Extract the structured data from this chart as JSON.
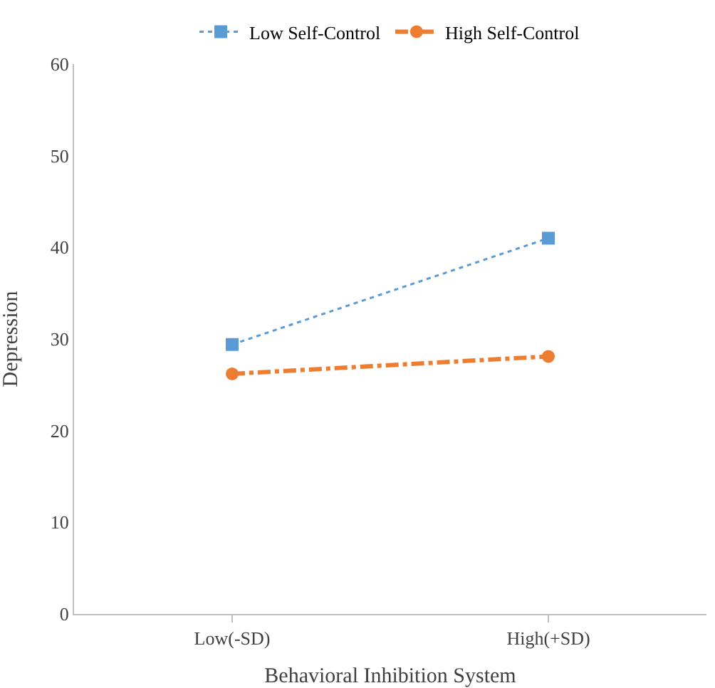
{
  "chart_data": {
    "type": "line",
    "xlabel": "Behavioral Inhibition System",
    "ylabel": "Depression",
    "categories": [
      "Low(-SD)",
      "High(+SD)"
    ],
    "series": [
      {
        "name": "Low Self-Control",
        "color": "#5b9bd5",
        "values": [
          29.4,
          41.0
        ],
        "marker": "square",
        "line_style": "dotted"
      },
      {
        "name": "High Self-Control",
        "color": "#ed7d31",
        "values": [
          26.2,
          28.1
        ],
        "marker": "circle",
        "line_style": "dashed"
      }
    ],
    "ylim": [
      0,
      60
    ],
    "yticks": [
      0,
      10,
      20,
      30,
      40,
      50,
      60
    ],
    "grid": false,
    "legend": "top"
  }
}
